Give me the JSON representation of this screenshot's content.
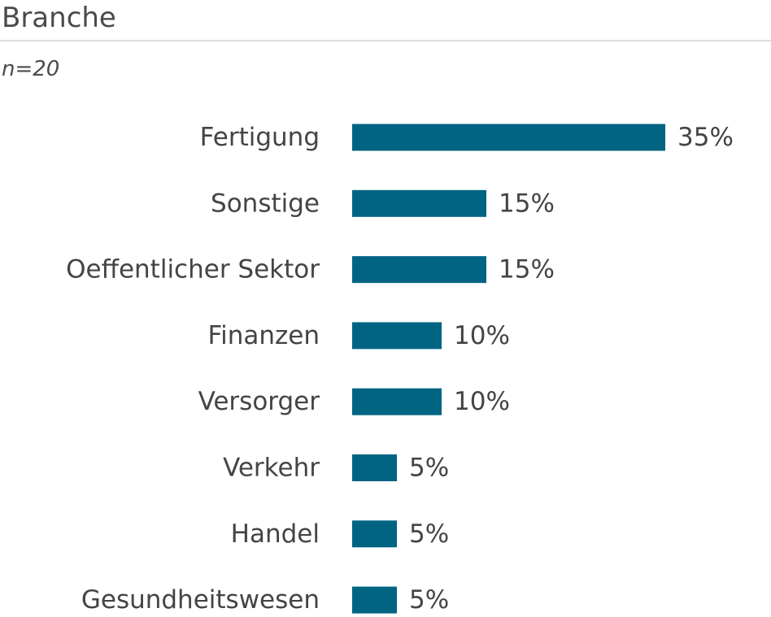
{
  "header": {
    "title": "Branche",
    "subtitle": "n=20"
  },
  "colors": {
    "bar": "#006482",
    "text": "#444444",
    "rule": "#dddddd"
  },
  "chart_data": {
    "type": "bar",
    "orientation": "horizontal",
    "title": "Branche",
    "subtitle": "n=20",
    "categories": [
      "Fertigung",
      "Sonstige",
      "Oeffentlicher Sektor",
      "Finanzen",
      "Versorger",
      "Verkehr",
      "Handel",
      "Gesundheitswesen"
    ],
    "values": [
      35,
      15,
      15,
      10,
      10,
      5,
      5,
      5
    ],
    "value_labels": [
      "35%",
      "15%",
      "15%",
      "10%",
      "10%",
      "5%",
      "5%",
      "5%"
    ],
    "unit": "%",
    "xlim": [
      0,
      35
    ],
    "grid": false,
    "legend": "none"
  }
}
